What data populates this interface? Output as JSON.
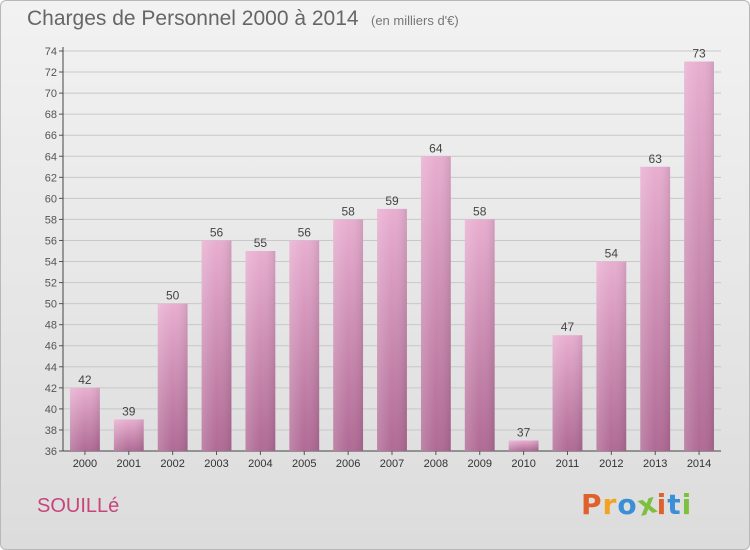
{
  "header": {
    "title": "Charges de Personnel 2000 à 2014",
    "subtitle": "(en milliers d'€)"
  },
  "footer": {
    "place": "SOUILLé",
    "brand": "Proxiti",
    "brand_colors": [
      "#e0612b",
      "#f2a324",
      "#3a8fd6",
      "#7dbf3e",
      "#e0612b",
      "#3a8fd6",
      "#7dbf3e"
    ]
  },
  "colors": {
    "bar_top": "#e8aed0",
    "bar_bottom": "#b06a95",
    "text": "#555555"
  },
  "chart_data": {
    "type": "bar",
    "title": "Charges de Personnel 2000 à 2014",
    "subtitle": "(en milliers d'€)",
    "categories": [
      "2000",
      "2001",
      "2002",
      "2003",
      "2004",
      "2005",
      "2006",
      "2007",
      "2008",
      "2009",
      "2010",
      "2011",
      "2012",
      "2013",
      "2014"
    ],
    "values": [
      42,
      39,
      50,
      56,
      55,
      56,
      58,
      59,
      64,
      58,
      37,
      47,
      54,
      63,
      73
    ],
    "ylim": [
      36,
      74
    ],
    "yticks": [
      36,
      38,
      40,
      42,
      44,
      46,
      48,
      50,
      52,
      54,
      56,
      58,
      60,
      62,
      64,
      66,
      68,
      70,
      72,
      74
    ],
    "grid": true,
    "data_labels": true
  }
}
